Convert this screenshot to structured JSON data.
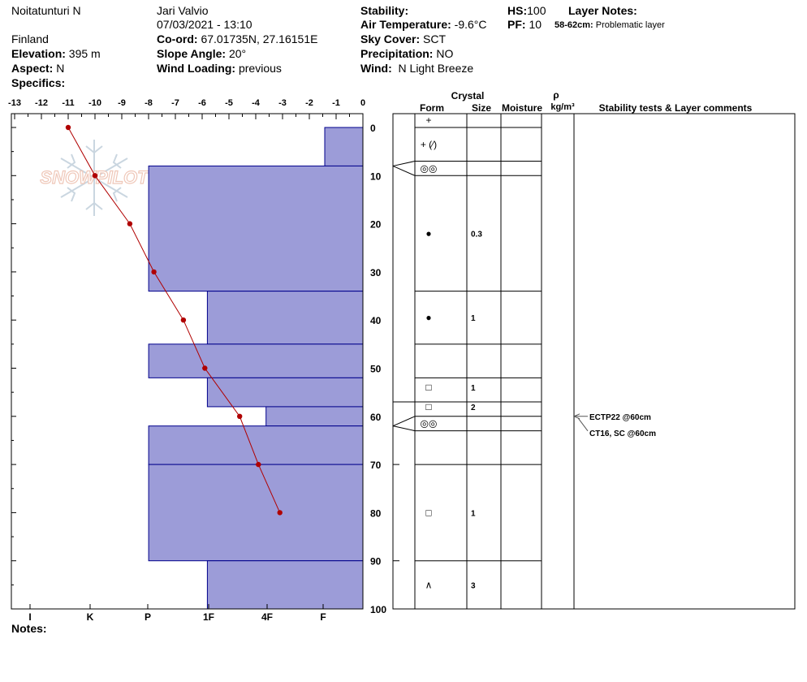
{
  "header": {
    "location": "Noitatunturi N",
    "country": "Finland",
    "elevation_label": "Elevation:",
    "elevation_value": "395 m",
    "aspect_label": "Aspect:",
    "aspect_value": "N",
    "specifics_label": "Specifics:",
    "observer": "Jari Valvio",
    "datetime": "07/03/2021 - 13:10",
    "coord_label": "Co-ord:",
    "coord_value": "67.01735N, 27.16151E",
    "slope_label": "Slope Angle:",
    "slope_value": "20°",
    "wind_loading_label": "Wind Loading:",
    "wind_loading_value": "previous",
    "stability_label": "Stability:",
    "air_temp_label": "Air Temperature:",
    "air_temp_value": "-9.6°C",
    "sky_label": "Sky Cover:",
    "sky_value": "SCT",
    "precip_label": "Precipitation:",
    "precip_value": "NO",
    "wind_label": "Wind:",
    "wind_value": "N Light Breeze",
    "hs_label": "HS:",
    "hs_value": "100",
    "pf_label": "PF:",
    "pf_value": "10",
    "layer_notes_label": "Layer Notes:",
    "layer_note_range": "58-62cm:",
    "layer_note_text": "Problematic layer",
    "notes_label": "Notes:"
  },
  "watermark": "SNOWPILOT",
  "colors": {
    "hardness_fill": "#9c9cd8",
    "hardness_edge": "#00008b",
    "temperature": "#b00000"
  },
  "chart_data": {
    "type": "snow-profile",
    "temperature_axis": {
      "ticks": [
        -13,
        -12,
        -11,
        -10,
        -9,
        -8,
        -7,
        -6,
        -5,
        -4,
        -3,
        -2,
        -1,
        0
      ],
      "range": [
        -13,
        0
      ]
    },
    "depth_axis": {
      "ticks": [
        0,
        10,
        20,
        30,
        40,
        50,
        60,
        70,
        80,
        90,
        100
      ],
      "range": [
        0,
        100
      ]
    },
    "hardness_axis": {
      "ticks": [
        "I",
        "K",
        "P",
        "1F",
        "4F",
        "F"
      ]
    },
    "hardness_layers": [
      {
        "top": 0,
        "bottom": 8,
        "hardness": 0.65
      },
      {
        "top": 8,
        "bottom": 34,
        "hardness": 3.65
      },
      {
        "top": 34,
        "bottom": 45,
        "hardness": 2.65
      },
      {
        "top": 45,
        "bottom": 52,
        "hardness": 3.65
      },
      {
        "top": 52,
        "bottom": 58,
        "hardness": 2.65
      },
      {
        "top": 58,
        "bottom": 62,
        "hardness": 1.65
      },
      {
        "top": 62,
        "bottom": 70,
        "hardness": 3.65
      },
      {
        "top": 70,
        "bottom": 90,
        "hardness": 3.65
      },
      {
        "top": 90,
        "bottom": 100,
        "hardness": 2.65
      }
    ],
    "temperature_profile": [
      {
        "depth": 0,
        "temp": -11
      },
      {
        "depth": 10,
        "temp": -10
      },
      {
        "depth": 20,
        "temp": -8.7
      },
      {
        "depth": 30,
        "temp": -7.8
      },
      {
        "depth": 40,
        "temp": -6.7
      },
      {
        "depth": 50,
        "temp": -5.9
      },
      {
        "depth": 60,
        "temp": -4.6
      },
      {
        "depth": 70,
        "temp": -3.9
      },
      {
        "depth": 80,
        "temp": -3.1
      }
    ],
    "table_headers": {
      "crystal": "Crystal",
      "form": "Form",
      "size": "Size",
      "moisture": "Moisture",
      "rho": "ρ",
      "density_unit": "kg/m³",
      "comments": "Stability tests & Layer comments"
    },
    "layer_boundaries": [
      0,
      7,
      10,
      34,
      45,
      52,
      57,
      60,
      63,
      70,
      90,
      100
    ],
    "crystal_rows": [
      {
        "depth": -1.5,
        "form": "+",
        "size": ""
      },
      {
        "depth": 3.5,
        "form": "+ (⁄)",
        "size": ""
      },
      {
        "depth": 8.5,
        "form": "◎◎",
        "size": ""
      },
      {
        "depth": 22,
        "form": "●",
        "size": "0.3"
      },
      {
        "depth": 39.5,
        "form": "●",
        "size": "1"
      },
      {
        "depth": 54,
        "form": "□",
        "size": "1"
      },
      {
        "depth": 58,
        "form": "□",
        "size": "2"
      },
      {
        "depth": 61.5,
        "form": "◎◎",
        "size": ""
      },
      {
        "depth": 80,
        "form": "□",
        "size": "1"
      },
      {
        "depth": 95,
        "form": "∧",
        "size": "3"
      }
    ],
    "stability_tests": [
      {
        "depth": 60,
        "label": "ECTP22 @60cm"
      },
      {
        "depth": 60,
        "label": "CT16, SC @60cm"
      }
    ]
  }
}
